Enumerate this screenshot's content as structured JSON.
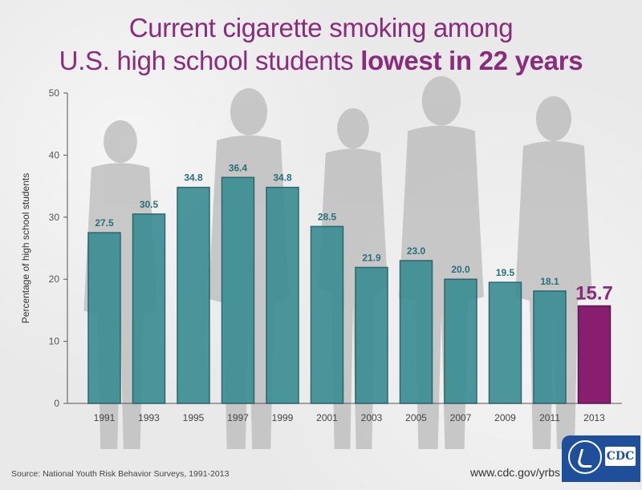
{
  "title_line1": "Current cigarette smoking among",
  "title_line2_normal": "U.S. high school students ",
  "title_line2_bold": "lowest in 22 years",
  "source": "Source: National Youth Risk Behavior Surveys, 1991-2013",
  "url": "www.cdc.gov/yrbs",
  "logo_text": "CDC",
  "colors": {
    "title": "#8a2b7b",
    "bar": "#3d8e94",
    "bar_highlight": "#871f6e",
    "label": "#2a6f78",
    "highlight_label": "#8a2b7b",
    "silhouette": "#b9b9b9"
  },
  "chart_data": {
    "type": "bar",
    "title": "Current cigarette smoking among U.S. high school students lowest in 22 years",
    "xlabel": "",
    "ylabel": "Percentage of high school students",
    "ylim": [
      0,
      50
    ],
    "yticks": [
      0,
      10,
      20,
      30,
      40,
      50
    ],
    "categories": [
      "1991",
      "1993",
      "1995",
      "1997",
      "1999",
      "2001",
      "2003",
      "2005",
      "2007",
      "2009",
      "2011",
      "2013"
    ],
    "values": [
      27.5,
      30.5,
      34.8,
      36.4,
      34.8,
      28.5,
      21.9,
      23.0,
      20.0,
      19.5,
      18.1,
      15.7
    ],
    "value_labels": [
      "27.5",
      "30.5",
      "34.8",
      "36.4",
      "34.8",
      "28.5",
      "21.9",
      "23.0",
      "20.0",
      "19.5",
      "18.1",
      "15.7"
    ],
    "highlight_index": 11,
    "grid": false
  }
}
